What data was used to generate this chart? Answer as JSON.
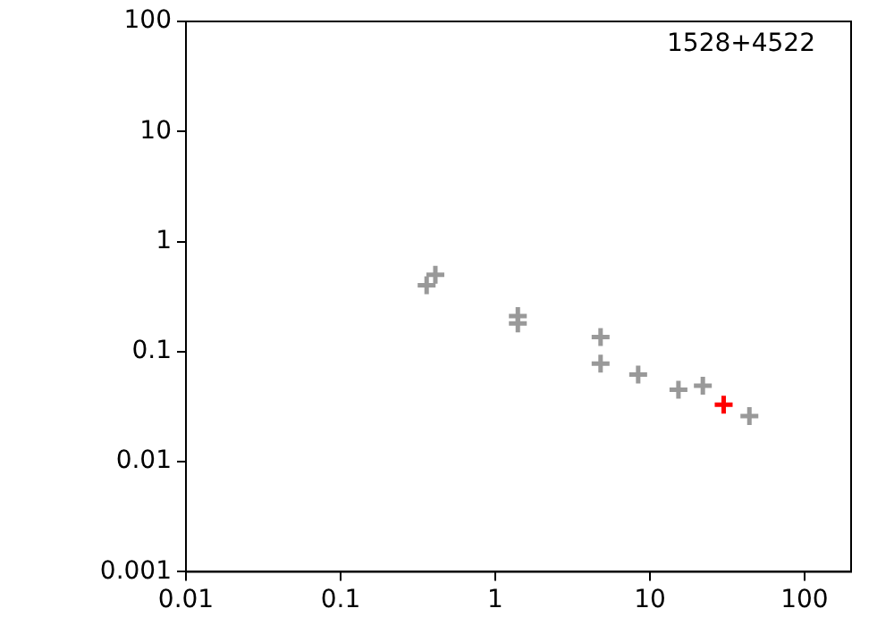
{
  "chart_data": {
    "type": "scatter",
    "log": "xy",
    "marker": "cross",
    "grid": false,
    "legend": false,
    "annotations": [
      "1528+4522"
    ],
    "xlim": [
      0.01,
      200
    ],
    "xticks": [
      0.01,
      0.1,
      1,
      10,
      100
    ],
    "ylim": [
      0.001,
      100
    ],
    "yticks": [
      0.001,
      0.01,
      0.1,
      1,
      10,
      100
    ],
    "series": [
      {
        "color": "#999999",
        "x": [
          0.36,
          0.41,
          1.4,
          1.4,
          4.8,
          4.8,
          8.4,
          15.3,
          22,
          44
        ],
        "values": [
          0.4,
          0.5,
          0.21,
          0.18,
          0.136,
          0.078,
          0.062,
          0.045,
          0.049,
          0.026
        ]
      },
      {
        "color": "#ff0000",
        "x": [
          30
        ],
        "values": [
          0.033
        ]
      }
    ]
  }
}
